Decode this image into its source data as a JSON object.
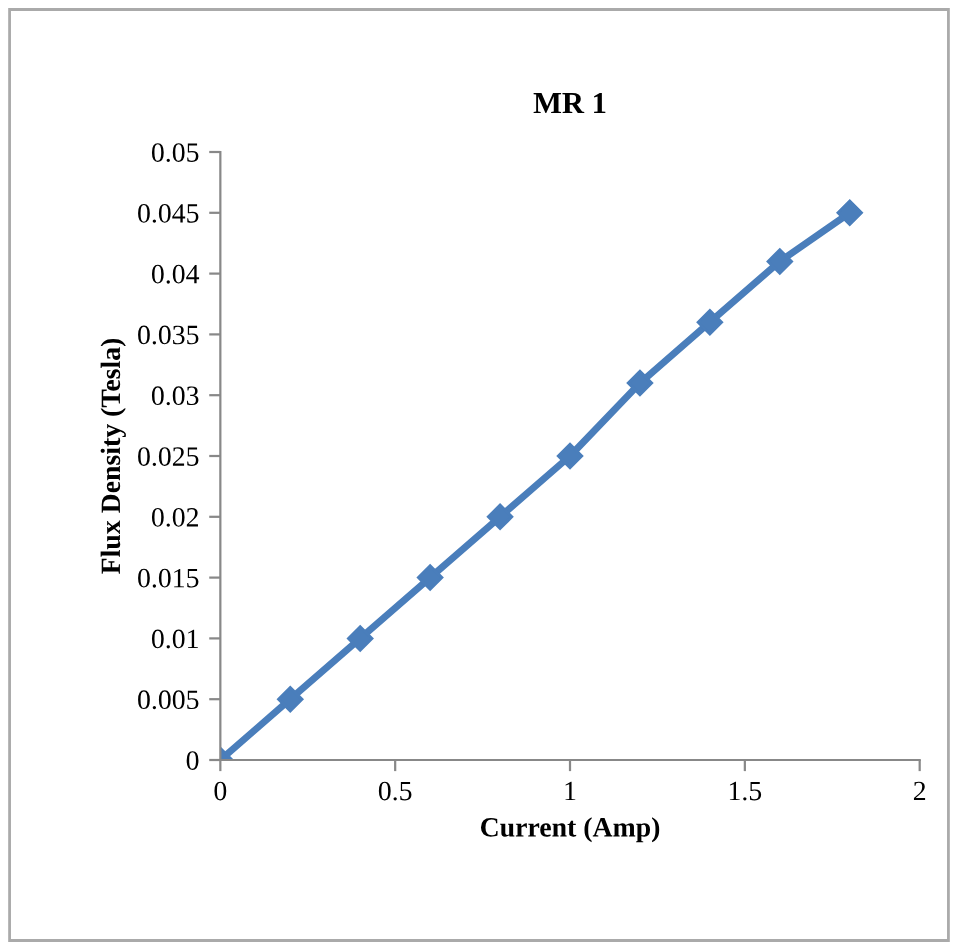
{
  "chart_data": {
    "type": "line",
    "title": "MR 1",
    "xlabel": "Current (Amp)",
    "ylabel": "Flux Density (Tesla)",
    "x": [
      0,
      0.2,
      0.4,
      0.6,
      0.8,
      1,
      1.2,
      1.4,
      1.6,
      1.8
    ],
    "series": [
      {
        "color": "#4a7ebb",
        "values": [
          0,
          0.005,
          0.01,
          0.015,
          0.02,
          0.025,
          0.031,
          0.036,
          0.041,
          0.045
        ]
      }
    ],
    "xlim": [
      0,
      2
    ],
    "xticks": [
      0,
      0.5,
      1,
      1.5,
      2
    ],
    "ylim": [
      0,
      0.05
    ],
    "yticks": [
      0,
      0.005,
      0.01,
      0.015,
      0.02,
      0.025,
      0.03,
      0.035,
      0.04,
      0.045,
      0.05
    ],
    "marker": "diamond",
    "line_style": "solid",
    "grid": false,
    "legend": false
  }
}
